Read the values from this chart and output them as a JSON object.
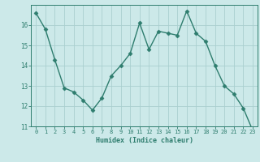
{
  "x": [
    0,
    1,
    2,
    3,
    4,
    5,
    6,
    7,
    8,
    9,
    10,
    11,
    12,
    13,
    14,
    15,
    16,
    17,
    18,
    19,
    20,
    21,
    22,
    23
  ],
  "y": [
    16.6,
    15.8,
    14.3,
    12.9,
    12.7,
    12.3,
    11.8,
    12.4,
    13.5,
    14.0,
    14.6,
    16.1,
    14.8,
    15.7,
    15.6,
    15.5,
    16.7,
    15.6,
    15.2,
    14.0,
    13.0,
    12.6,
    11.9,
    10.8
  ],
  "xlabel": "Humidex (Indice chaleur)",
  "line_color": "#2e7d6e",
  "marker": "D",
  "marker_size": 2.5,
  "bg_color": "#cce9e9",
  "grid_color": "#aacfcf",
  "axes_color": "#2e7d6e",
  "tick_color": "#2e7d6e",
  "ylim": [
    11,
    17
  ],
  "xlim": [
    -0.5,
    23.5
  ],
  "yticks": [
    11,
    12,
    13,
    14,
    15,
    16
  ],
  "xticks": [
    0,
    1,
    2,
    3,
    4,
    5,
    6,
    7,
    8,
    9,
    10,
    11,
    12,
    13,
    14,
    15,
    16,
    17,
    18,
    19,
    20,
    21,
    22,
    23
  ]
}
